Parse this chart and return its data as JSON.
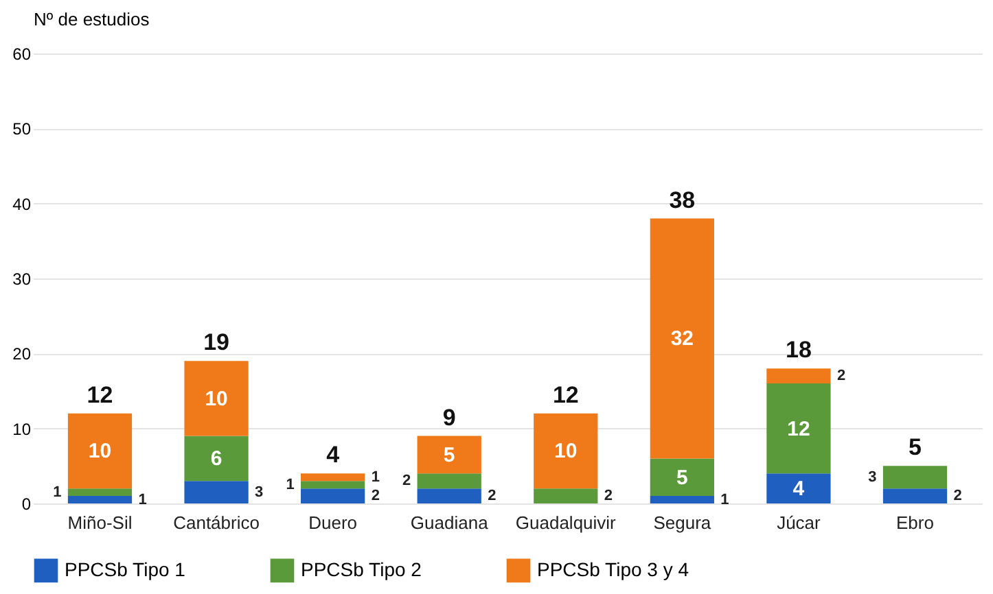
{
  "chart_data": {
    "type": "bar",
    "ylabel": "Nº de estudios",
    "categories": [
      "Miño-Sil",
      "Cantábrico",
      "Duero",
      "Guadiana",
      "Guadalquivir",
      "Segura",
      "Júcar",
      "Ebro"
    ],
    "series": [
      {
        "name": "PPCSb Tipo 1",
        "color": "#1f5fbf",
        "values": [
          1,
          3,
          2,
          2,
          null,
          1,
          4,
          2
        ]
      },
      {
        "name": "PPCSb Tipo 2",
        "color": "#5a9a3a",
        "values": [
          1,
          6,
          1,
          2,
          2,
          5,
          12,
          3
        ]
      },
      {
        "name": "PPCSb Tipo 3 y 4",
        "color": "#f07a1a",
        "values": [
          10,
          10,
          1,
          5,
          10,
          32,
          2,
          null
        ]
      }
    ],
    "stacked": true,
    "data_labels": true,
    "totals": [
      "12",
      "19",
      "4",
      "9",
      "12",
      "38",
      "18",
      "5"
    ],
    "ylim": [
      0,
      60
    ],
    "yticks": [
      0,
      10,
      20,
      30,
      40,
      50,
      60
    ],
    "grid": "y",
    "legend": "bottom"
  }
}
